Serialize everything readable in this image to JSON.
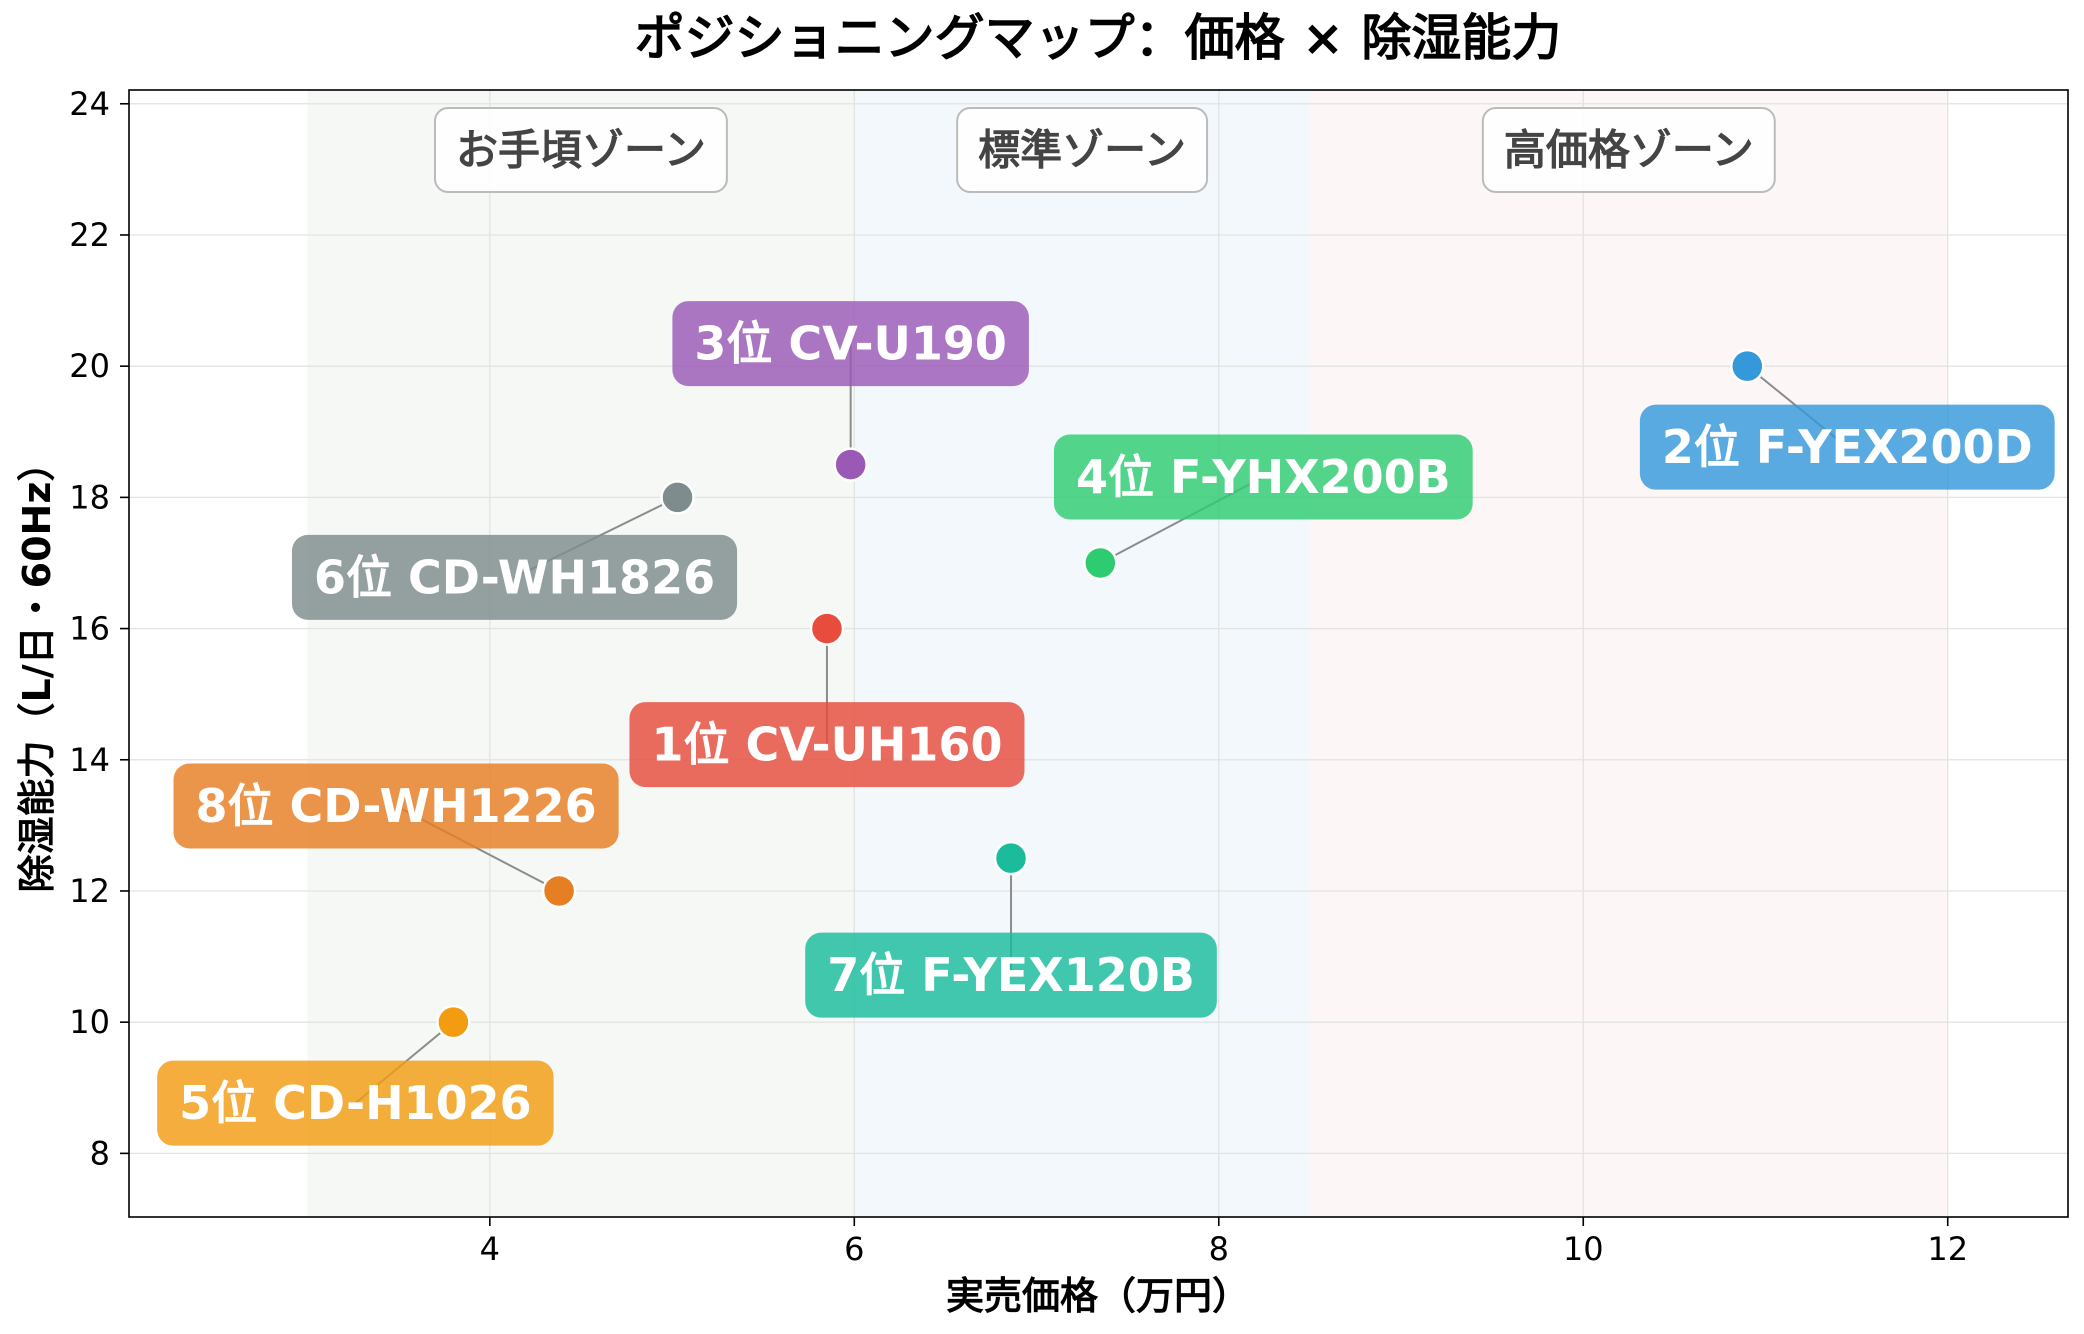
{
  "chart_data": {
    "type": "scatter",
    "title": "ポジショニングマップ：価格 × 除湿能力",
    "xlabel": "実売価格（万円）",
    "ylabel": "除湿能力（L/日・60Hz）",
    "xlim": [
      2.02,
      12.66
    ],
    "ylim": [
      7.03,
      24.21
    ],
    "xticks": [
      4,
      6,
      8,
      10,
      12
    ],
    "yticks": [
      8,
      10,
      12,
      14,
      16,
      18,
      20,
      22,
      24
    ],
    "grid": true,
    "zones": [
      {
        "label": "お手頃ゾーン",
        "x_range": [
          3,
          6
        ],
        "color": "#f5f8f5"
      },
      {
        "label": "標準ゾーン",
        "x_range": [
          6,
          8.5
        ],
        "color": "#f3f8fc"
      },
      {
        "label": "高価格ゾーン",
        "x_range": [
          8.5,
          12
        ],
        "color": "#fdf6f6"
      }
    ],
    "points": [
      {
        "label": "1位 CV-UH160",
        "x": 5.85,
        "y": 16,
        "color": "#e74c3c"
      },
      {
        "label": "2位 F-YEX200D",
        "x": 10.9,
        "y": 20,
        "color": "#3498db"
      },
      {
        "label": "3位 CV-U190",
        "x": 5.98,
        "y": 18.5,
        "color": "#9b59b6"
      },
      {
        "label": "4位 F-YHX200B",
        "x": 7.35,
        "y": 17,
        "color": "#2ecc71"
      },
      {
        "label": "5位 CD-H1026",
        "x": 3.8,
        "y": 10,
        "color": "#f39c12"
      },
      {
        "label": "6位 CD-WH1826",
        "x": 5.03,
        "y": 18,
        "color": "#7f8c8d"
      },
      {
        "label": "7位 F-YEX120B",
        "x": 6.86,
        "y": 12.5,
        "color": "#1abc9c"
      },
      {
        "label": "8位 CD-WH1226",
        "x": 4.38,
        "y": 12,
        "color": "#e67e22"
      }
    ]
  }
}
